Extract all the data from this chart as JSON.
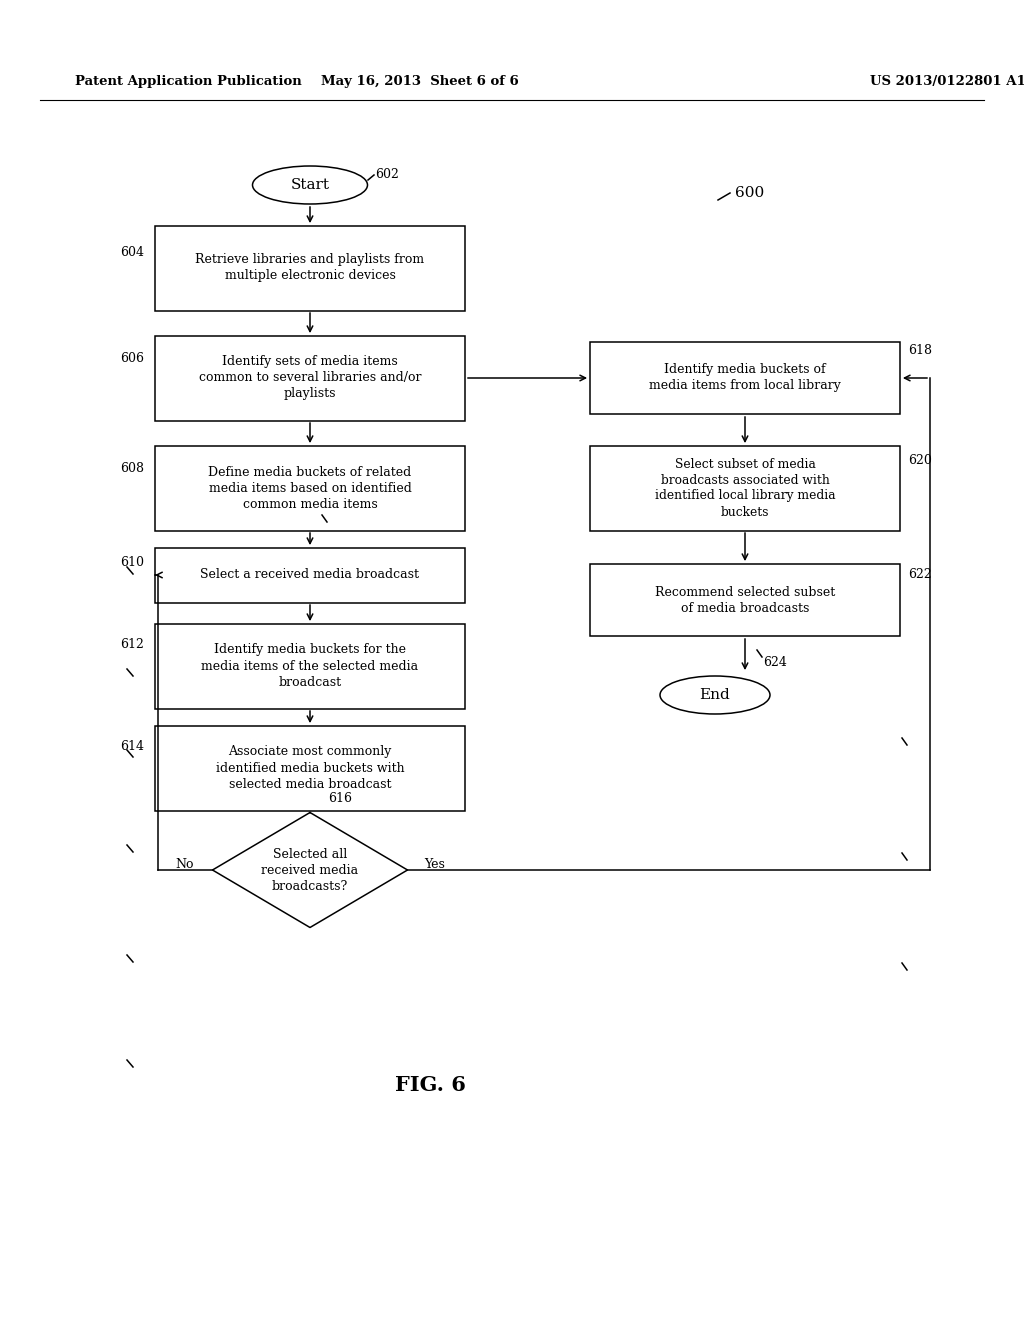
{
  "header_left": "Patent Application Publication",
  "header_center": "May 16, 2013  Sheet 6 of 6",
  "header_right": "US 2013/0122801 A1",
  "fig_label": "FIG. 6",
  "background_color": "#ffffff"
}
